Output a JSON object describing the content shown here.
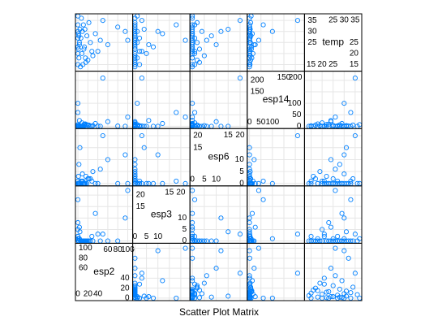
{
  "chart_data": {
    "type": "splom",
    "title": "Scatter Plot Matrix",
    "color": "#0080ff",
    "grid": true,
    "variables": [
      {
        "name": "esp2",
        "lim": [
          -5,
          110
        ],
        "ticks": [
          0,
          20,
          40,
          60,
          80,
          100
        ],
        "values": [
          5,
          10,
          0,
          20,
          2,
          15,
          30,
          0,
          8,
          40,
          1,
          12,
          0,
          60,
          3,
          25,
          100,
          6,
          0,
          18,
          2,
          35,
          9,
          0,
          14,
          4,
          80,
          0,
          11,
          22,
          50,
          7,
          0,
          16,
          3,
          45,
          1,
          28,
          13,
          95
        ]
      },
      {
        "name": "esp3",
        "lim": [
          -1,
          24
        ],
        "ticks": [
          0,
          5,
          10,
          15,
          20
        ],
        "values": [
          0,
          0,
          2,
          0,
          1,
          0,
          0,
          5,
          0,
          3,
          0,
          0,
          8,
          0,
          1,
          0,
          22,
          0,
          2,
          0,
          0,
          12,
          0,
          1,
          0,
          4,
          0,
          18,
          0,
          0,
          3,
          0,
          1,
          0,
          6,
          0,
          0,
          2,
          0,
          10
        ]
      },
      {
        "name": "esp6",
        "lim": [
          -1,
          23
        ],
        "ticks": [
          0,
          5,
          10,
          15,
          20
        ],
        "values": [
          0,
          1,
          0,
          2,
          0,
          0,
          5,
          0,
          1,
          0,
          3,
          0,
          0,
          10,
          0,
          2,
          0,
          1,
          0,
          0,
          8,
          0,
          4,
          0,
          0,
          15,
          0,
          1,
          0,
          2,
          20,
          0,
          0,
          3,
          0,
          6,
          0,
          1,
          0,
          12
        ]
      },
      {
        "name": "esp14",
        "lim": [
          -10,
          240
        ],
        "ticks": [
          0,
          50,
          100,
          150,
          200
        ],
        "values": [
          0,
          0,
          2,
          5,
          0,
          10,
          3,
          0,
          15,
          1,
          0,
          8,
          0,
          20,
          4,
          0,
          40,
          0,
          2,
          6,
          0,
          12,
          0,
          100,
          3,
          0,
          1,
          60,
          0,
          5,
          210,
          0,
          7,
          0,
          25,
          0,
          2,
          0,
          9,
          0
        ]
      },
      {
        "name": "temp",
        "lim": [
          12,
          38
        ],
        "ticks": [
          15,
          20,
          25,
          30,
          35
        ],
        "values": [
          14,
          15,
          15,
          17,
          18,
          18,
          19,
          20,
          20,
          21,
          22,
          22,
          23,
          24,
          25,
          25,
          26,
          27,
          27,
          28,
          28,
          29,
          30,
          30,
          31,
          31,
          32,
          33,
          33,
          34,
          35,
          36,
          37,
          16,
          24,
          26,
          29,
          21,
          23,
          30
        ]
      }
    ]
  }
}
